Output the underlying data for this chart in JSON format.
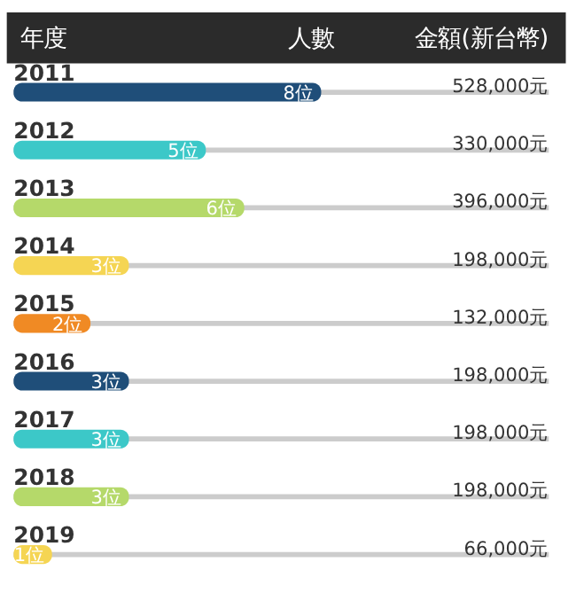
{
  "chart_data": {
    "type": "bar",
    "orientation": "horizontal",
    "tick_labels": false,
    "ylabel": "年度",
    "xlabel": "人數",
    "categories": [
      "2011",
      "2012",
      "2013",
      "2014",
      "2015",
      "2016",
      "2017",
      "2018",
      "2019"
    ],
    "values": [
      8,
      5,
      6,
      3,
      2,
      3,
      3,
      3,
      1
    ],
    "value_labels": [
      "8位",
      "5位",
      "6位",
      "3位",
      "2位",
      "3位",
      "3位",
      "3位",
      "1位"
    ],
    "colors": [
      "#1f4e79",
      "#3cc8c8",
      "#b5d96a",
      "#f5d553",
      "#f08a24",
      "#1f4e79",
      "#3cc8c8",
      "#b5d96a",
      "#f5d553"
    ],
    "annotations": [
      "金額(新台幣)",
      "528,000元",
      "330,000元",
      "396,000元",
      "198,000元",
      "132,000元",
      "198,000元",
      "198,000元",
      "198,000元",
      "66,000元"
    ]
  }
}
